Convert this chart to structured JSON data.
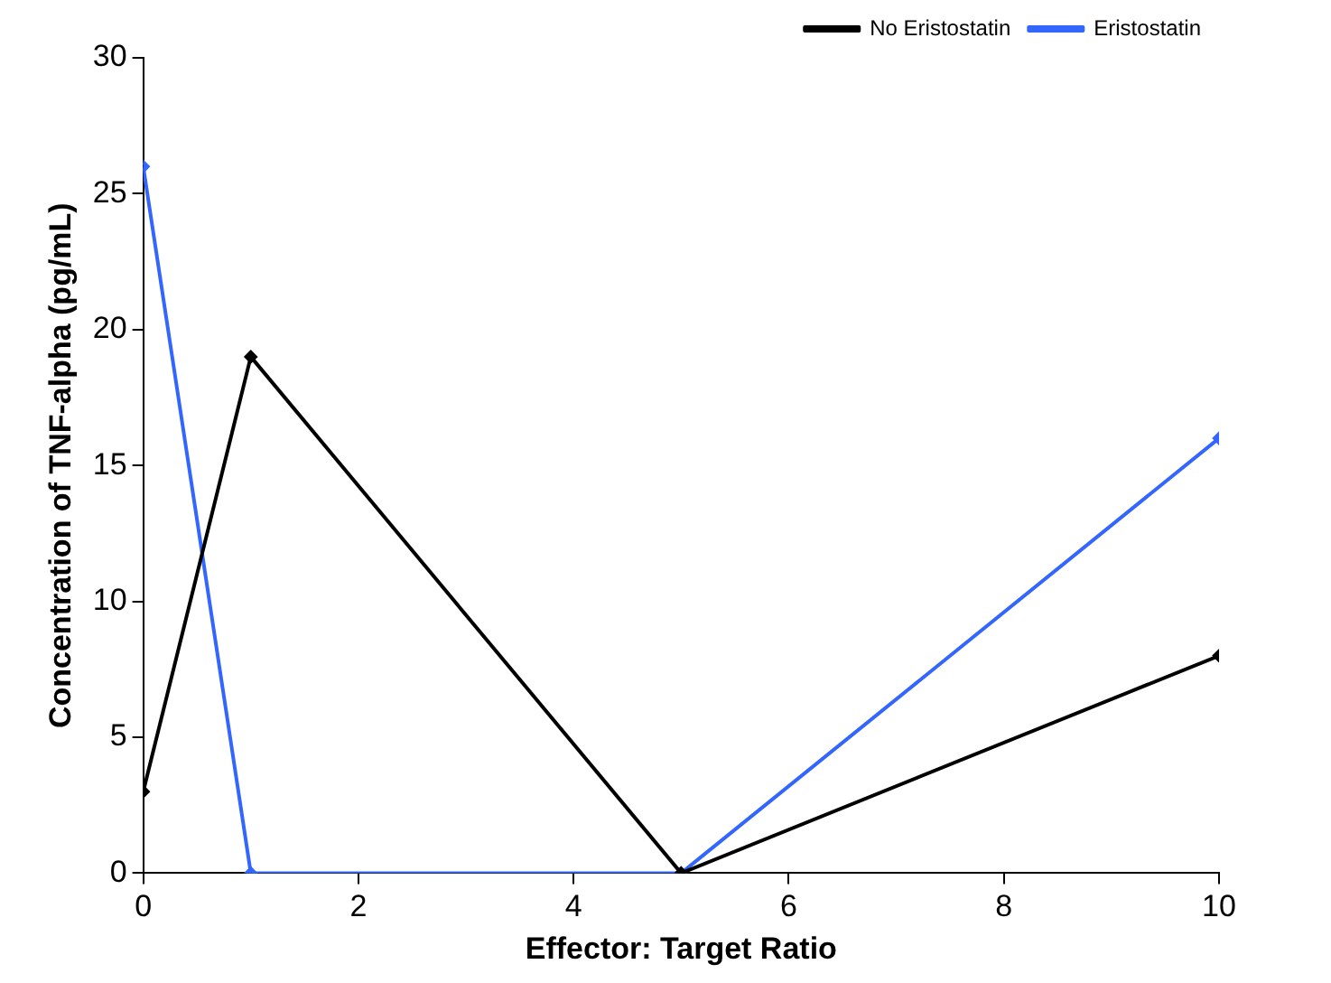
{
  "chart_data": {
    "type": "line",
    "xlabel": "Effector: Target Ratio",
    "ylabel": "Concentration of TNF-alpha (pg/mL)",
    "x": [
      0,
      1,
      5,
      10
    ],
    "series": [
      {
        "name": "No Eristostatin",
        "color": "#000000",
        "values": [
          3,
          19,
          0,
          8
        ]
      },
      {
        "name": "Eristostatin",
        "color": "#3366ff",
        "values": [
          26,
          0,
          0,
          16
        ]
      }
    ],
    "xlim": [
      0,
      10
    ],
    "xticks": [
      0,
      2,
      4,
      6,
      8,
      10
    ],
    "ylim": [
      0,
      30
    ],
    "yticks": [
      0,
      5,
      10,
      15,
      20,
      25,
      30
    ],
    "grid": false,
    "legend": "top right",
    "marker": "diamond",
    "line_style": "solid"
  }
}
